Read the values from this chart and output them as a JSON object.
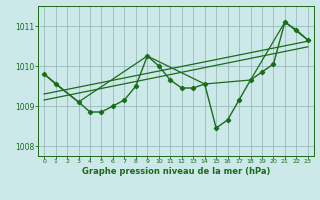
{
  "xlabel": "Graphe pression niveau de la mer (hPa)",
  "bg_color": "#cce8e8",
  "grid_color": "#99bbbb",
  "line_color": "#1a6b1a",
  "ylim": [
    1007.75,
    1011.5
  ],
  "xlim": [
    -0.5,
    23.5
  ],
  "yticks": [
    1008,
    1009,
    1010,
    1011
  ],
  "xticks": [
    0,
    1,
    2,
    3,
    4,
    5,
    6,
    7,
    8,
    9,
    10,
    11,
    12,
    13,
    14,
    15,
    16,
    17,
    18,
    19,
    20,
    21,
    22,
    23
  ],
  "main_x": [
    0,
    1,
    3,
    4,
    5,
    6,
    7,
    8,
    9,
    10,
    11,
    12,
    13,
    14,
    15,
    16,
    17,
    18,
    19,
    20,
    21,
    22,
    23
  ],
  "main_y": [
    1009.8,
    1009.55,
    1009.1,
    1008.85,
    1008.85,
    1009.0,
    1009.15,
    1009.5,
    1010.25,
    1010.0,
    1009.65,
    1009.45,
    1009.45,
    1009.55,
    1008.45,
    1008.65,
    1009.15,
    1009.65,
    1009.85,
    1010.05,
    1011.1,
    1010.9,
    1010.65
  ],
  "trend1_x": [
    0,
    23
  ],
  "trend1_y": [
    1009.3,
    1010.62
  ],
  "trend2_x": [
    0,
    23
  ],
  "trend2_y": [
    1009.15,
    1010.48
  ],
  "envelope_x": [
    0,
    3,
    9,
    14,
    18,
    21,
    23
  ],
  "envelope_y": [
    1009.8,
    1009.1,
    1010.25,
    1009.55,
    1009.65,
    1011.1,
    1010.65
  ]
}
